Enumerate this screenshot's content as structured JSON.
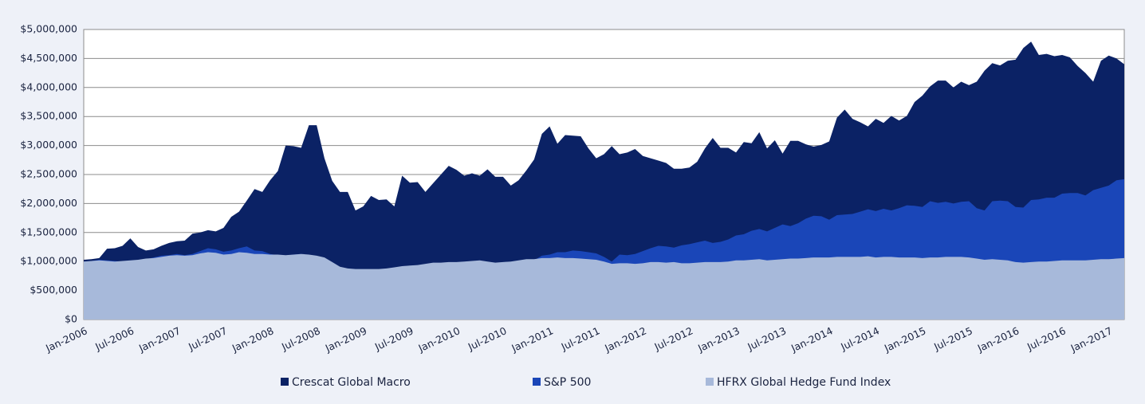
{
  "chart_data": {
    "type": "area",
    "categories": [
      "Jan-2006",
      null,
      null,
      null,
      null,
      null,
      "Jul-2006",
      null,
      null,
      null,
      null,
      null,
      "Jan-2007",
      null,
      null,
      null,
      null,
      null,
      "Jul-2007",
      null,
      null,
      null,
      null,
      null,
      "Jan-2008",
      null,
      null,
      null,
      null,
      null,
      "Jul-2008",
      null,
      null,
      null,
      null,
      null,
      "Jan-2009",
      null,
      null,
      null,
      null,
      null,
      "Jul-2009",
      null,
      null,
      null,
      null,
      null,
      "Jan-2010",
      null,
      null,
      null,
      null,
      null,
      "Jul-2010",
      null,
      null,
      null,
      null,
      null,
      "Jan-2011",
      null,
      null,
      null,
      null,
      null,
      "Jul-2011",
      null,
      null,
      null,
      null,
      null,
      "Jan-2012",
      null,
      null,
      null,
      null,
      null,
      "Jul-2012",
      null,
      null,
      null,
      null,
      null,
      "Jan-2013",
      null,
      null,
      null,
      null,
      null,
      "Jul-2013",
      null,
      null,
      null,
      null,
      null,
      "Jan-2014",
      null,
      null,
      null,
      null,
      null,
      "Jul-2014",
      null,
      null,
      null,
      null,
      null,
      "Jan-2015",
      null,
      null,
      null,
      null,
      null,
      "Jul-2015",
      null,
      null,
      null,
      null,
      null,
      "Jan-2016",
      null,
      null,
      null,
      null,
      null,
      "Jul-2016",
      null,
      null,
      null,
      null,
      null,
      "Jan-2017",
      null,
      null
    ],
    "series": [
      {
        "name": "Crescat Global Macro",
        "color": "#0b2265",
        "values": [
          1030000,
          1040000,
          1060000,
          1220000,
          1230000,
          1270000,
          1400000,
          1250000,
          1190000,
          1210000,
          1270000,
          1320000,
          1350000,
          1360000,
          1480000,
          1500000,
          1540000,
          1520000,
          1580000,
          1770000,
          1860000,
          2050000,
          2250000,
          2200000,
          2400000,
          2560000,
          3000000,
          2990000,
          2960000,
          3350000,
          3350000,
          2780000,
          2390000,
          2200000,
          2200000,
          1880000,
          1950000,
          2130000,
          2060000,
          2070000,
          1950000,
          2480000,
          2360000,
          2370000,
          2200000,
          2350000,
          2500000,
          2650000,
          2580000,
          2480000,
          2520000,
          2480000,
          2590000,
          2460000,
          2460000,
          2310000,
          2400000,
          2570000,
          2760000,
          3200000,
          3330000,
          3030000,
          3180000,
          3170000,
          3160000,
          2950000,
          2780000,
          2850000,
          2990000,
          2850000,
          2880000,
          2940000,
          2820000,
          2780000,
          2740000,
          2700000,
          2600000,
          2600000,
          2620000,
          2720000,
          2950000,
          3130000,
          2960000,
          2960000,
          2880000,
          3060000,
          3040000,
          3230000,
          2950000,
          3090000,
          2860000,
          3080000,
          3080000,
          3020000,
          2980000,
          3010000,
          3070000,
          3480000,
          3620000,
          3460000,
          3400000,
          3330000,
          3460000,
          3390000,
          3510000,
          3430000,
          3510000,
          3750000,
          3860000,
          4020000,
          4120000,
          4120000,
          4000000,
          4100000,
          4040000,
          4100000,
          4290000,
          4420000,
          4380000,
          4460000,
          4480000,
          4680000,
          4790000,
          4560000,
          4580000,
          4540000,
          4560000,
          4520000,
          4370000,
          4250000,
          4100000,
          4460000,
          4550000,
          4500000,
          4400000
        ]
      },
      {
        "name": "S&P 500",
        "color": "#1a46b8",
        "values": [
          1000000,
          1010000,
          1030000,
          1020000,
          1010000,
          1000000,
          1000000,
          1020000,
          1040000,
          1070000,
          1100000,
          1110000,
          1130000,
          1110000,
          1130000,
          1180000,
          1230000,
          1210000,
          1170000,
          1190000,
          1230000,
          1260000,
          1190000,
          1180000,
          1130000,
          1110000,
          1100000,
          1120000,
          1130000,
          1060000,
          1050000,
          990000,
          900000,
          760000,
          700000,
          710000,
          650000,
          590000,
          640000,
          700000,
          740000,
          750000,
          800000,
          830000,
          860000,
          870000,
          920000,
          940000,
          900000,
          930000,
          980000,
          1000000,
          920000,
          880000,
          940000,
          900000,
          990000,
          1020000,
          1020000,
          1100000,
          1120000,
          1160000,
          1160000,
          1190000,
          1180000,
          1160000,
          1140000,
          1080000,
          1000000,
          1120000,
          1110000,
          1130000,
          1180000,
          1230000,
          1270000,
          1260000,
          1240000,
          1280000,
          1300000,
          1330000,
          1360000,
          1320000,
          1340000,
          1380000,
          1450000,
          1470000,
          1530000,
          1560000,
          1520000,
          1580000,
          1640000,
          1610000,
          1660000,
          1740000,
          1790000,
          1780000,
          1720000,
          1800000,
          1810000,
          1820000,
          1860000,
          1900000,
          1870000,
          1910000,
          1880000,
          1920000,
          1970000,
          1960000,
          1940000,
          2040000,
          2010000,
          2030000,
          2000000,
          2030000,
          2040000,
          1920000,
          1880000,
          2040000,
          2050000,
          2040000,
          1940000,
          1930000,
          2060000,
          2070000,
          2100000,
          2100000,
          2170000,
          2180000,
          2180000,
          2140000,
          2230000,
          2270000,
          2310000,
          2400000,
          2420000
        ]
      },
      {
        "name": "HFRX Global Hedge Fund Index",
        "color": "#a7b9da",
        "values": [
          1000000,
          1010000,
          1020000,
          1010000,
          1000000,
          1010000,
          1020000,
          1030000,
          1050000,
          1060000,
          1080000,
          1100000,
          1110000,
          1100000,
          1110000,
          1140000,
          1160000,
          1150000,
          1120000,
          1130000,
          1160000,
          1150000,
          1130000,
          1130000,
          1120000,
          1120000,
          1110000,
          1120000,
          1130000,
          1120000,
          1100000,
          1070000,
          990000,
          910000,
          880000,
          870000,
          870000,
          870000,
          870000,
          880000,
          900000,
          920000,
          930000,
          940000,
          960000,
          980000,
          980000,
          990000,
          990000,
          1000000,
          1010000,
          1020000,
          1000000,
          980000,
          990000,
          1000000,
          1020000,
          1040000,
          1040000,
          1060000,
          1060000,
          1070000,
          1060000,
          1060000,
          1050000,
          1040000,
          1030000,
          1000000,
          960000,
          970000,
          970000,
          960000,
          970000,
          990000,
          990000,
          980000,
          990000,
          970000,
          970000,
          980000,
          990000,
          990000,
          990000,
          1000000,
          1020000,
          1020000,
          1030000,
          1040000,
          1020000,
          1030000,
          1040000,
          1050000,
          1050000,
          1060000,
          1070000,
          1070000,
          1070000,
          1080000,
          1080000,
          1080000,
          1080000,
          1090000,
          1070000,
          1080000,
          1080000,
          1070000,
          1070000,
          1070000,
          1060000,
          1070000,
          1070000,
          1080000,
          1080000,
          1080000,
          1070000,
          1050000,
          1030000,
          1040000,
          1030000,
          1020000,
          990000,
          980000,
          990000,
          1000000,
          1000000,
          1010000,
          1020000,
          1020000,
          1020000,
          1020000,
          1030000,
          1040000,
          1040000,
          1050000,
          1060000
        ]
      }
    ],
    "ylim": [
      0,
      5000000
    ],
    "yticks": [
      {
        "value": 0,
        "label": "$0"
      },
      {
        "value": 500000,
        "label": "$500,000"
      },
      {
        "value": 1000000,
        "label": "$1,000,000"
      },
      {
        "value": 1500000,
        "label": "$1,500,000"
      },
      {
        "value": 2000000,
        "label": "$2,000,000"
      },
      {
        "value": 2500000,
        "label": "$2,500,000"
      },
      {
        "value": 3000000,
        "label": "$3,000,000"
      },
      {
        "value": 3500000,
        "label": "$3,500,000"
      },
      {
        "value": 4000000,
        "label": "$4,000,000"
      },
      {
        "value": 4500000,
        "label": "$4,500,000"
      },
      {
        "value": 5000000,
        "label": "$5,000,000"
      }
    ],
    "grid": true
  }
}
